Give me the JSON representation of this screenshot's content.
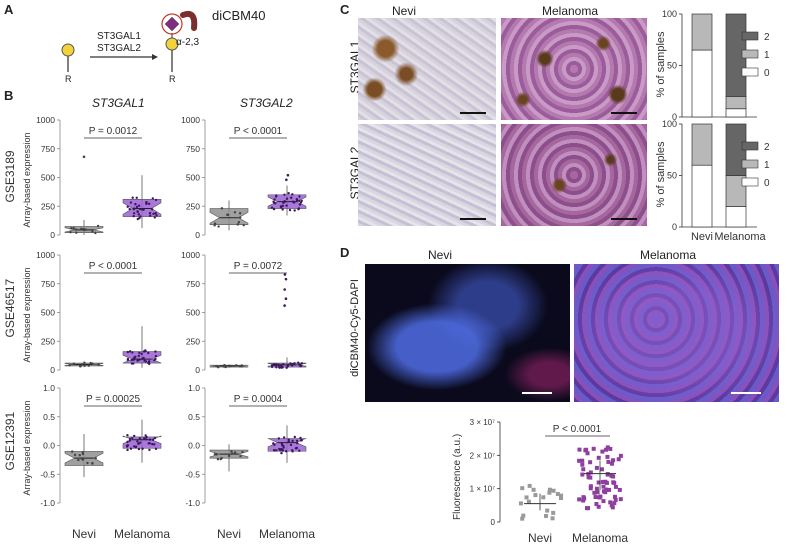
{
  "panels": {
    "a": "A",
    "b": "B",
    "c": "C",
    "d": "D"
  },
  "panel_a": {
    "enzyme1": "ST3GAL1",
    "enzyme2": "ST3GAL2",
    "linkage": "α-2,3",
    "lectin": "diCBM40",
    "r_left": "R",
    "r_right": "R"
  },
  "panel_b": {
    "gene1": "ST3GAL1",
    "gene2": "ST3GAL2",
    "ylabel": "Array-based expression",
    "rows": [
      {
        "dataset": "GSE3189",
        "p1": "P = 0.0012",
        "p2": "P < 0.0001",
        "ticks": [
          "1000",
          "750",
          "500",
          "250",
          "0"
        ]
      },
      {
        "dataset": "GSE46517",
        "p1": "P < 0.0001",
        "p2": "P = 0.0072",
        "ticks": [
          "1000",
          "750",
          "500",
          "250",
          "0"
        ]
      },
      {
        "dataset": "GSE12391",
        "p1": "P = 0.00025",
        "p2": "P = 0.0004",
        "ticks": [
          "1.0",
          "0.5",
          "0.0",
          "-0.5",
          "-1.0"
        ]
      }
    ],
    "categories": [
      "Nevi",
      "Melanoma"
    ]
  },
  "panel_c": {
    "col1": "Nevi",
    "col2": "Melanoma",
    "row1": "ST3GAL1",
    "row2": "ST3GAL2",
    "ylabel": "% of samples",
    "ticks": [
      "100",
      "50",
      "0"
    ],
    "legend": [
      "2",
      "1",
      "0"
    ],
    "colors": {
      "2": "#666666",
      "1": "#b8b8b8",
      "0": "#ffffff"
    },
    "categories": [
      "Nevi",
      "Melanoma"
    ]
  },
  "panel_d": {
    "col1": "Nevi",
    "col2": "Melanoma",
    "stain": "diCBM40-Cy5-DAPI",
    "ylabel": "Fluorescence (a.u.)",
    "ticks": [
      "3 × 10⁷",
      "2 × 10⁷",
      "1 × 10⁷",
      "0"
    ],
    "pvalue": "P < 0.0001",
    "categories": [
      "Nevi",
      "Melanoma"
    ]
  },
  "chart_data": [
    {
      "type": "bar",
      "title": "ST3GAL1",
      "stacked": true,
      "ylabel": "% of samples",
      "ylim": [
        0,
        100
      ],
      "categories": [
        "Nevi",
        "Melanoma"
      ],
      "series": [
        {
          "name": "0",
          "values": [
            65,
            8
          ]
        },
        {
          "name": "1",
          "values": [
            35,
            12
          ]
        },
        {
          "name": "2",
          "values": [
            0,
            80
          ]
        }
      ]
    },
    {
      "type": "bar",
      "title": "ST3GAL2",
      "stacked": true,
      "ylabel": "% of samples",
      "ylim": [
        0,
        100
      ],
      "categories": [
        "Nevi",
        "Melanoma"
      ],
      "series": [
        {
          "name": "0",
          "values": [
            60,
            20
          ]
        },
        {
          "name": "1",
          "values": [
            40,
            30
          ]
        },
        {
          "name": "2",
          "values": [
            0,
            50
          ]
        }
      ]
    },
    {
      "type": "scatter",
      "ylabel": "Fluorescence (a.u.)",
      "ylim": [
        0,
        30000000
      ],
      "categories": [
        "Nevi",
        "Melanoma"
      ],
      "medians": [
        5500000,
        14500000
      ],
      "iqr": [
        [
          3500000,
          8500000
        ],
        [
          9500000,
          18500000
        ]
      ]
    }
  ]
}
